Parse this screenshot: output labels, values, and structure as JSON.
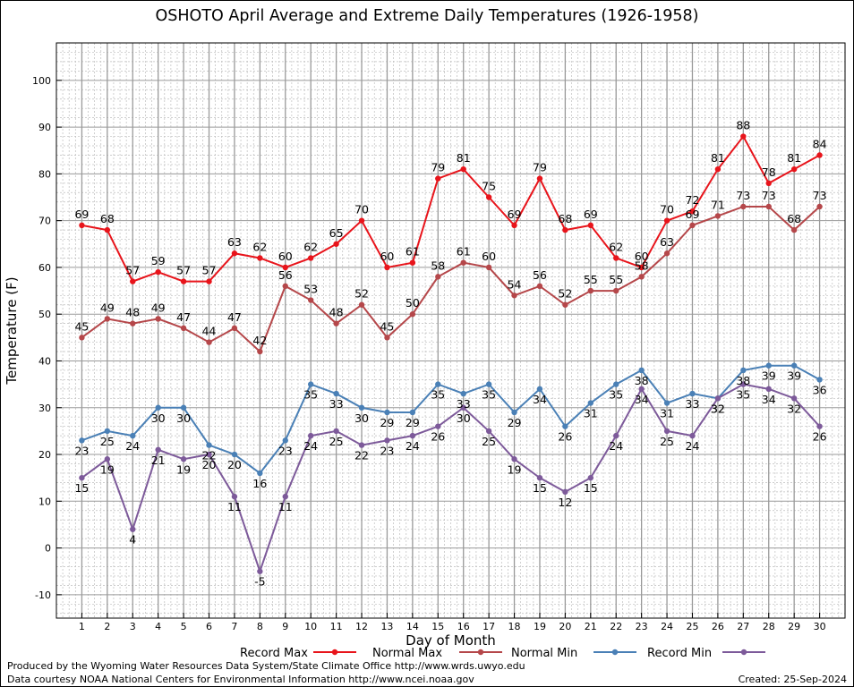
{
  "chart_data": {
    "type": "line",
    "title": "OSHOTO April Average and Extreme Daily Temperatures (1926-1958)",
    "xlabel": "Day of Month",
    "ylabel": "Temperature (F)",
    "x": [
      1,
      2,
      3,
      4,
      5,
      6,
      7,
      8,
      9,
      10,
      11,
      12,
      13,
      14,
      15,
      16,
      17,
      18,
      19,
      20,
      21,
      22,
      23,
      24,
      25,
      26,
      27,
      28,
      29,
      30
    ],
    "xlim": [
      0,
      31
    ],
    "ylim": [
      -15,
      108
    ],
    "yticks": [
      -10,
      0,
      10,
      20,
      30,
      40,
      50,
      60,
      70,
      80,
      90,
      100
    ],
    "grid": true,
    "legend": "bottom",
    "series": [
      {
        "name": "Record Max",
        "color": "#e8141b",
        "values": [
          69,
          68,
          57,
          59,
          57,
          57,
          63,
          62,
          60,
          62,
          65,
          70,
          60,
          61,
          79,
          81,
          75,
          69,
          79,
          68,
          69,
          62,
          60,
          70,
          72,
          81,
          88,
          78,
          81,
          84
        ]
      },
      {
        "name": "Normal Max",
        "color": "#b5474a",
        "values": [
          45,
          49,
          48,
          49,
          47,
          44,
          47,
          42,
          56,
          53,
          48,
          52,
          45,
          50,
          58,
          61,
          60,
          54,
          56,
          52,
          55,
          55,
          58,
          63,
          69,
          71,
          73,
          73,
          68,
          73
        ]
      },
      {
        "name": "Normal Min",
        "color": "#4a80b6",
        "values": [
          23,
          25,
          24,
          30,
          30,
          22,
          20,
          16,
          23,
          35,
          33,
          30,
          29,
          29,
          35,
          33,
          35,
          29,
          34,
          26,
          31,
          35,
          38,
          31,
          33,
          32,
          38,
          39,
          39,
          36
        ]
      },
      {
        "name": "Record Min",
        "color": "#7d5a9a",
        "values": [
          15,
          19,
          4,
          21,
          19,
          20,
          11,
          -5,
          11,
          24,
          25,
          22,
          23,
          24,
          26,
          30,
          25,
          19,
          15,
          12,
          15,
          24,
          34,
          25,
          24,
          32,
          35,
          34,
          32,
          26
        ]
      }
    ]
  },
  "footer": {
    "credit_line1": "Produced by the Wyoming Water Resources Data System/State Climate Office http://www.wrds.uwyo.edu",
    "credit_line2": "Data courtesy NOAA National Centers for Environmental Information http://www.ncei.noaa.gov",
    "created": "Created:  25-Sep-2024"
  }
}
